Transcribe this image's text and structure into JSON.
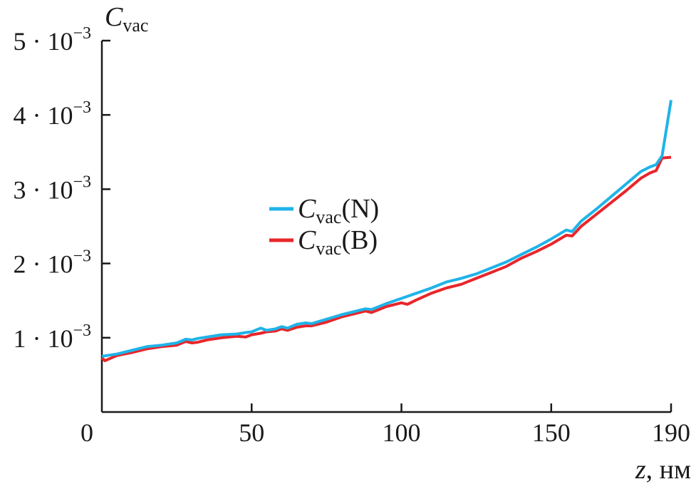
{
  "chart_data": {
    "type": "line",
    "title": "",
    "xlabel": {
      "var": "z",
      "unit": ", нм"
    },
    "ylabel": {
      "main": "C",
      "sub": "vac"
    },
    "xlim": [
      0,
      190
    ],
    "ylim": [
      0,
      0.005
    ],
    "x_ticks": [
      {
        "value": 0,
        "label": "0"
      },
      {
        "value": 50,
        "label": "50"
      },
      {
        "value": 100,
        "label": "100"
      },
      {
        "value": 150,
        "label": "150"
      },
      {
        "value": 190,
        "label": "190"
      }
    ],
    "y_ticks": [
      {
        "value": 0.001,
        "mant": "1 · 10",
        "exp": "−3"
      },
      {
        "value": 0.002,
        "mant": "2 · 10",
        "exp": "−3"
      },
      {
        "value": 0.003,
        "mant": "3 · 10",
        "exp": "−3"
      },
      {
        "value": 0.004,
        "mant": "4 · 10",
        "exp": "−3"
      },
      {
        "value": 0.005,
        "mant": "5 · 10",
        "exp": "−3"
      }
    ],
    "legend": {
      "placement": "center-left"
    },
    "series": [
      {
        "name": {
          "main": "C",
          "sub": "vac",
          "suffix": "(N)"
        },
        "color": "#1fb3e8",
        "x": [
          0,
          5,
          10,
          15,
          20,
          25,
          28,
          30,
          32,
          35,
          40,
          45,
          48,
          50,
          53,
          55,
          58,
          60,
          62,
          65,
          68,
          70,
          75,
          80,
          85,
          88,
          90,
          95,
          100,
          105,
          110,
          115,
          120,
          125,
          130,
          135,
          140,
          145,
          150,
          155,
          157,
          160,
          165,
          170,
          175,
          180,
          183,
          185,
          187,
          190
        ],
        "y": [
          0.00075,
          0.00078,
          0.00083,
          0.00088,
          0.0009,
          0.00093,
          0.00098,
          0.00097,
          0.00099,
          0.00101,
          0.00104,
          0.00105,
          0.00107,
          0.00108,
          0.00113,
          0.0011,
          0.00112,
          0.00115,
          0.00113,
          0.00118,
          0.0012,
          0.00119,
          0.00125,
          0.00131,
          0.00136,
          0.00139,
          0.00138,
          0.00146,
          0.00153,
          0.0016,
          0.00167,
          0.00175,
          0.0018,
          0.00186,
          0.00194,
          0.00202,
          0.00212,
          0.00222,
          0.00233,
          0.00245,
          0.00243,
          0.00257,
          0.00273,
          0.0029,
          0.00307,
          0.00324,
          0.0033,
          0.00333,
          0.00345,
          0.0042
        ]
      },
      {
        "name": {
          "main": "C",
          "sub": "vac",
          "suffix": "(B)"
        },
        "color": "#e8262b",
        "x": [
          0,
          1,
          5,
          10,
          15,
          20,
          25,
          28,
          30,
          32,
          35,
          40,
          45,
          48,
          50,
          53,
          55,
          58,
          60,
          62,
          65,
          68,
          70,
          75,
          80,
          85,
          88,
          90,
          95,
          100,
          102,
          105,
          110,
          115,
          120,
          125,
          130,
          135,
          140,
          145,
          150,
          155,
          157,
          160,
          165,
          170,
          175,
          180,
          183,
          185,
          187,
          190
        ],
        "y": [
          0.00073,
          0.00069,
          0.00076,
          0.0008,
          0.00085,
          0.00088,
          0.0009,
          0.00095,
          0.00093,
          0.00094,
          0.00097,
          0.001,
          0.00102,
          0.00101,
          0.00104,
          0.00106,
          0.00108,
          0.00109,
          0.00112,
          0.0011,
          0.00114,
          0.00116,
          0.00116,
          0.00121,
          0.00128,
          0.00133,
          0.00136,
          0.00134,
          0.00142,
          0.00147,
          0.00145,
          0.00151,
          0.0016,
          0.00167,
          0.00172,
          0.0018,
          0.00188,
          0.00196,
          0.00207,
          0.00216,
          0.00226,
          0.00238,
          0.00237,
          0.0025,
          0.00266,
          0.00282,
          0.00298,
          0.00315,
          0.00322,
          0.00325,
          0.00342,
          0.00343
        ]
      }
    ]
  }
}
